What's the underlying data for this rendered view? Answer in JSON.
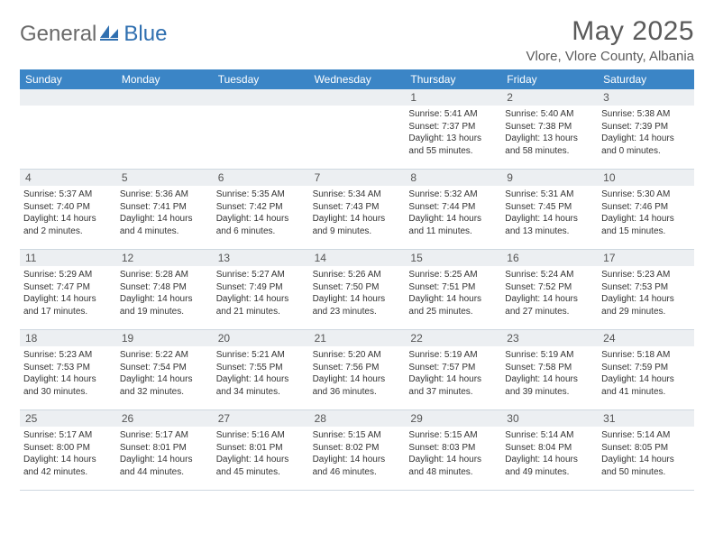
{
  "brand": {
    "part1": "General",
    "part2": "Blue"
  },
  "title": "May 2025",
  "location": "Vlore, Vlore County, Albania",
  "colors": {
    "header_bg": "#3b85c6",
    "header_text": "#ffffff",
    "num_bg": "#eceff2",
    "border": "#cfd8e0",
    "text": "#333333",
    "title_text": "#5a5a5a"
  },
  "day_names": [
    "Sunday",
    "Monday",
    "Tuesday",
    "Wednesday",
    "Thursday",
    "Friday",
    "Saturday"
  ],
  "weeks": [
    [
      {
        "n": "",
        "sr": "",
        "ss": "",
        "dl": ""
      },
      {
        "n": "",
        "sr": "",
        "ss": "",
        "dl": ""
      },
      {
        "n": "",
        "sr": "",
        "ss": "",
        "dl": ""
      },
      {
        "n": "",
        "sr": "",
        "ss": "",
        "dl": ""
      },
      {
        "n": "1",
        "sr": "Sunrise: 5:41 AM",
        "ss": "Sunset: 7:37 PM",
        "dl": "Daylight: 13 hours and 55 minutes."
      },
      {
        "n": "2",
        "sr": "Sunrise: 5:40 AM",
        "ss": "Sunset: 7:38 PM",
        "dl": "Daylight: 13 hours and 58 minutes."
      },
      {
        "n": "3",
        "sr": "Sunrise: 5:38 AM",
        "ss": "Sunset: 7:39 PM",
        "dl": "Daylight: 14 hours and 0 minutes."
      }
    ],
    [
      {
        "n": "4",
        "sr": "Sunrise: 5:37 AM",
        "ss": "Sunset: 7:40 PM",
        "dl": "Daylight: 14 hours and 2 minutes."
      },
      {
        "n": "5",
        "sr": "Sunrise: 5:36 AM",
        "ss": "Sunset: 7:41 PM",
        "dl": "Daylight: 14 hours and 4 minutes."
      },
      {
        "n": "6",
        "sr": "Sunrise: 5:35 AM",
        "ss": "Sunset: 7:42 PM",
        "dl": "Daylight: 14 hours and 6 minutes."
      },
      {
        "n": "7",
        "sr": "Sunrise: 5:34 AM",
        "ss": "Sunset: 7:43 PM",
        "dl": "Daylight: 14 hours and 9 minutes."
      },
      {
        "n": "8",
        "sr": "Sunrise: 5:32 AM",
        "ss": "Sunset: 7:44 PM",
        "dl": "Daylight: 14 hours and 11 minutes."
      },
      {
        "n": "9",
        "sr": "Sunrise: 5:31 AM",
        "ss": "Sunset: 7:45 PM",
        "dl": "Daylight: 14 hours and 13 minutes."
      },
      {
        "n": "10",
        "sr": "Sunrise: 5:30 AM",
        "ss": "Sunset: 7:46 PM",
        "dl": "Daylight: 14 hours and 15 minutes."
      }
    ],
    [
      {
        "n": "11",
        "sr": "Sunrise: 5:29 AM",
        "ss": "Sunset: 7:47 PM",
        "dl": "Daylight: 14 hours and 17 minutes."
      },
      {
        "n": "12",
        "sr": "Sunrise: 5:28 AM",
        "ss": "Sunset: 7:48 PM",
        "dl": "Daylight: 14 hours and 19 minutes."
      },
      {
        "n": "13",
        "sr": "Sunrise: 5:27 AM",
        "ss": "Sunset: 7:49 PM",
        "dl": "Daylight: 14 hours and 21 minutes."
      },
      {
        "n": "14",
        "sr": "Sunrise: 5:26 AM",
        "ss": "Sunset: 7:50 PM",
        "dl": "Daylight: 14 hours and 23 minutes."
      },
      {
        "n": "15",
        "sr": "Sunrise: 5:25 AM",
        "ss": "Sunset: 7:51 PM",
        "dl": "Daylight: 14 hours and 25 minutes."
      },
      {
        "n": "16",
        "sr": "Sunrise: 5:24 AM",
        "ss": "Sunset: 7:52 PM",
        "dl": "Daylight: 14 hours and 27 minutes."
      },
      {
        "n": "17",
        "sr": "Sunrise: 5:23 AM",
        "ss": "Sunset: 7:53 PM",
        "dl": "Daylight: 14 hours and 29 minutes."
      }
    ],
    [
      {
        "n": "18",
        "sr": "Sunrise: 5:23 AM",
        "ss": "Sunset: 7:53 PM",
        "dl": "Daylight: 14 hours and 30 minutes."
      },
      {
        "n": "19",
        "sr": "Sunrise: 5:22 AM",
        "ss": "Sunset: 7:54 PM",
        "dl": "Daylight: 14 hours and 32 minutes."
      },
      {
        "n": "20",
        "sr": "Sunrise: 5:21 AM",
        "ss": "Sunset: 7:55 PM",
        "dl": "Daylight: 14 hours and 34 minutes."
      },
      {
        "n": "21",
        "sr": "Sunrise: 5:20 AM",
        "ss": "Sunset: 7:56 PM",
        "dl": "Daylight: 14 hours and 36 minutes."
      },
      {
        "n": "22",
        "sr": "Sunrise: 5:19 AM",
        "ss": "Sunset: 7:57 PM",
        "dl": "Daylight: 14 hours and 37 minutes."
      },
      {
        "n": "23",
        "sr": "Sunrise: 5:19 AM",
        "ss": "Sunset: 7:58 PM",
        "dl": "Daylight: 14 hours and 39 minutes."
      },
      {
        "n": "24",
        "sr": "Sunrise: 5:18 AM",
        "ss": "Sunset: 7:59 PM",
        "dl": "Daylight: 14 hours and 41 minutes."
      }
    ],
    [
      {
        "n": "25",
        "sr": "Sunrise: 5:17 AM",
        "ss": "Sunset: 8:00 PM",
        "dl": "Daylight: 14 hours and 42 minutes."
      },
      {
        "n": "26",
        "sr": "Sunrise: 5:17 AM",
        "ss": "Sunset: 8:01 PM",
        "dl": "Daylight: 14 hours and 44 minutes."
      },
      {
        "n": "27",
        "sr": "Sunrise: 5:16 AM",
        "ss": "Sunset: 8:01 PM",
        "dl": "Daylight: 14 hours and 45 minutes."
      },
      {
        "n": "28",
        "sr": "Sunrise: 5:15 AM",
        "ss": "Sunset: 8:02 PM",
        "dl": "Daylight: 14 hours and 46 minutes."
      },
      {
        "n": "29",
        "sr": "Sunrise: 5:15 AM",
        "ss": "Sunset: 8:03 PM",
        "dl": "Daylight: 14 hours and 48 minutes."
      },
      {
        "n": "30",
        "sr": "Sunrise: 5:14 AM",
        "ss": "Sunset: 8:04 PM",
        "dl": "Daylight: 14 hours and 49 minutes."
      },
      {
        "n": "31",
        "sr": "Sunrise: 5:14 AM",
        "ss": "Sunset: 8:05 PM",
        "dl": "Daylight: 14 hours and 50 minutes."
      }
    ]
  ]
}
